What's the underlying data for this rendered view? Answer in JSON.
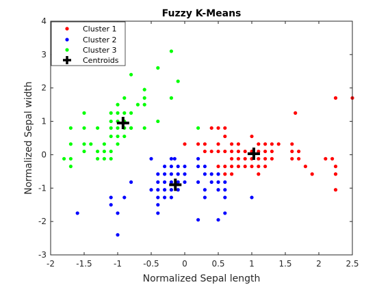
{
  "chart_data": {
    "type": "scatter",
    "title": "Fuzzy K-Means",
    "xlabel": "Normalized Sepal length",
    "ylabel": "Normalized Sepal width",
    "xlim": [
      -2,
      2.5
    ],
    "ylim": [
      -3,
      4
    ],
    "xticks": [
      -2,
      -1.5,
      -1,
      -0.5,
      0,
      0.5,
      1,
      1.5,
      2,
      2.5
    ],
    "yticks": [
      -3,
      -2,
      -1,
      0,
      1,
      2,
      3,
      4
    ],
    "grid": false,
    "legend_position": "top-left",
    "series": [
      {
        "name": "Cluster 1",
        "color": "#ff0000",
        "marker": "dot",
        "points": [
          [
            0.5,
            0.8
          ],
          [
            0.6,
            0.8
          ],
          [
            0.6,
            0.55
          ],
          [
            0.5,
            0.32
          ],
          [
            0.4,
            0.1
          ],
          [
            0.7,
            0.32
          ],
          [
            0.8,
            0.32
          ],
          [
            0.5,
            0.1
          ],
          [
            0.6,
            0.1
          ],
          [
            0.7,
            0.1
          ],
          [
            0.8,
            0.1
          ],
          [
            0.9,
            0.1
          ],
          [
            1.0,
            0.1
          ],
          [
            1.1,
            0.1
          ],
          [
            0.5,
            -0.35
          ],
          [
            0.6,
            -0.35
          ],
          [
            0.7,
            -0.35
          ],
          [
            0.8,
            -0.35
          ],
          [
            0.6,
            -0.58
          ],
          [
            0.7,
            -0.58
          ],
          [
            0.8,
            -0.12
          ],
          [
            0.9,
            -0.12
          ],
          [
            1.0,
            -0.12
          ],
          [
            1.1,
            -0.12
          ],
          [
            0.7,
            -0.12
          ],
          [
            0.9,
            -0.35
          ],
          [
            1.0,
            0.55
          ],
          [
            1.1,
            0.32
          ],
          [
            1.2,
            0.32
          ],
          [
            1.3,
            0.32
          ],
          [
            1.4,
            0.32
          ],
          [
            1.2,
            0.1
          ],
          [
            1.3,
            0.1
          ],
          [
            1.2,
            -0.12
          ],
          [
            1.3,
            -0.12
          ],
          [
            1.1,
            -0.35
          ],
          [
            1.2,
            -0.35
          ],
          [
            1.0,
            -0.35
          ],
          [
            1.1,
            -0.58
          ],
          [
            1.6,
            0.1
          ],
          [
            1.7,
            0.1
          ],
          [
            1.6,
            -0.12
          ],
          [
            1.7,
            -0.12
          ],
          [
            1.6,
            0.32
          ],
          [
            1.65,
            1.25
          ],
          [
            1.8,
            -0.35
          ],
          [
            1.9,
            -0.58
          ],
          [
            2.1,
            -0.12
          ],
          [
            2.2,
            -0.12
          ],
          [
            2.25,
            -0.35
          ],
          [
            2.25,
            -0.58
          ],
          [
            2.25,
            -1.05
          ],
          [
            2.25,
            1.7
          ],
          [
            2.5,
            1.7
          ],
          [
            0.3,
            0.1
          ],
          [
            0.3,
            0.32
          ],
          [
            0.2,
            0.32
          ],
          [
            0.0,
            0.32
          ],
          [
            0.4,
            0.8
          ]
        ]
      },
      {
        "name": "Cluster 2",
        "color": "#0000ff",
        "marker": "dot",
        "points": [
          [
            -0.15,
            -0.12
          ],
          [
            -0.3,
            -0.35
          ],
          [
            -0.3,
            -0.58
          ],
          [
            -0.3,
            -0.82
          ],
          [
            -0.3,
            -1.05
          ],
          [
            -0.4,
            -0.58
          ],
          [
            -0.4,
            -0.82
          ],
          [
            -0.4,
            -1.05
          ],
          [
            -0.4,
            -1.28
          ],
          [
            -0.4,
            -1.5
          ],
          [
            -0.4,
            -1.75
          ],
          [
            -0.2,
            -0.12
          ],
          [
            -0.2,
            -0.35
          ],
          [
            -0.2,
            -0.58
          ],
          [
            -0.2,
            -0.82
          ],
          [
            -0.2,
            -1.05
          ],
          [
            -0.2,
            -1.28
          ],
          [
            -0.3,
            -1.28
          ],
          [
            -0.1,
            -0.35
          ],
          [
            -0.1,
            -0.58
          ],
          [
            -0.1,
            -0.82
          ],
          [
            -0.1,
            -1.05
          ],
          [
            0.0,
            -0.35
          ],
          [
            0.0,
            -0.58
          ],
          [
            0.0,
            -0.82
          ],
          [
            0.2,
            -0.12
          ],
          [
            0.2,
            -0.35
          ],
          [
            0.3,
            -0.35
          ],
          [
            0.3,
            -0.58
          ],
          [
            0.3,
            -1.05
          ],
          [
            0.3,
            -1.28
          ],
          [
            0.2,
            -0.82
          ],
          [
            0.4,
            -0.58
          ],
          [
            0.5,
            -0.58
          ],
          [
            0.5,
            -0.82
          ],
          [
            0.5,
            -1.05
          ],
          [
            0.6,
            -0.82
          ],
          [
            0.6,
            -1.05
          ],
          [
            0.6,
            -1.28
          ],
          [
            0.6,
            -1.75
          ],
          [
            0.5,
            -1.95
          ],
          [
            0.2,
            -1.95
          ],
          [
            0.4,
            -0.82
          ],
          [
            -0.5,
            -0.12
          ],
          [
            -0.5,
            -1.05
          ],
          [
            -0.8,
            -0.82
          ],
          [
            -0.9,
            -1.28
          ],
          [
            -1.1,
            -1.28
          ],
          [
            -1.1,
            -1.5
          ],
          [
            -1.0,
            -1.75
          ],
          [
            -1.0,
            -2.4
          ],
          [
            -1.6,
            -1.75
          ],
          [
            1.0,
            -1.28
          ]
        ]
      },
      {
        "name": "Cluster 3",
        "color": "#00ff00",
        "marker": "dot",
        "points": [
          [
            -0.2,
            3.1
          ],
          [
            -0.9,
            1.7
          ],
          [
            -0.8,
            2.4
          ],
          [
            -0.4,
            2.6
          ],
          [
            -0.6,
            1.95
          ],
          [
            -0.6,
            1.7
          ],
          [
            -0.1,
            2.2
          ],
          [
            -0.2,
            1.7
          ],
          [
            -0.7,
            1.5
          ],
          [
            -0.6,
            1.5
          ],
          [
            -0.8,
            1.25
          ],
          [
            -0.4,
            1.0
          ],
          [
            -0.6,
            0.8
          ],
          [
            -0.8,
            0.8
          ],
          [
            -1.0,
            1.5
          ],
          [
            -1.0,
            1.25
          ],
          [
            -0.9,
            1.25
          ],
          [
            -1.0,
            1.0
          ],
          [
            -1.0,
            0.8
          ],
          [
            -1.0,
            0.55
          ],
          [
            -1.0,
            0.32
          ],
          [
            -0.9,
            0.55
          ],
          [
            -0.9,
            0.8
          ],
          [
            -1.1,
            1.25
          ],
          [
            -1.1,
            1.0
          ],
          [
            -1.1,
            0.8
          ],
          [
            -1.1,
            0.55
          ],
          [
            -1.2,
            0.32
          ],
          [
            -1.2,
            0.1
          ],
          [
            -1.2,
            -0.12
          ],
          [
            -1.1,
            0.1
          ],
          [
            -1.1,
            -0.12
          ],
          [
            -1.3,
            0.8
          ],
          [
            -1.3,
            0.1
          ],
          [
            -1.3,
            -0.12
          ],
          [
            -1.4,
            0.32
          ],
          [
            -1.5,
            0.32
          ],
          [
            -1.5,
            0.1
          ],
          [
            -1.5,
            0.8
          ],
          [
            -1.5,
            1.25
          ],
          [
            -1.7,
            0.8
          ],
          [
            -1.7,
            0.32
          ],
          [
            -1.7,
            -0.12
          ],
          [
            -1.7,
            -0.35
          ],
          [
            -1.8,
            -0.12
          ],
          [
            -0.9,
            1.0
          ],
          [
            -0.8,
            0.8
          ],
          [
            0.2,
            0.8
          ]
        ]
      },
      {
        "name": "Centroids",
        "color": "#000000",
        "marker": "plus",
        "points": [
          [
            -0.92,
            0.95
          ],
          [
            -0.14,
            -0.9
          ],
          [
            1.03,
            0.03
          ]
        ]
      }
    ]
  }
}
